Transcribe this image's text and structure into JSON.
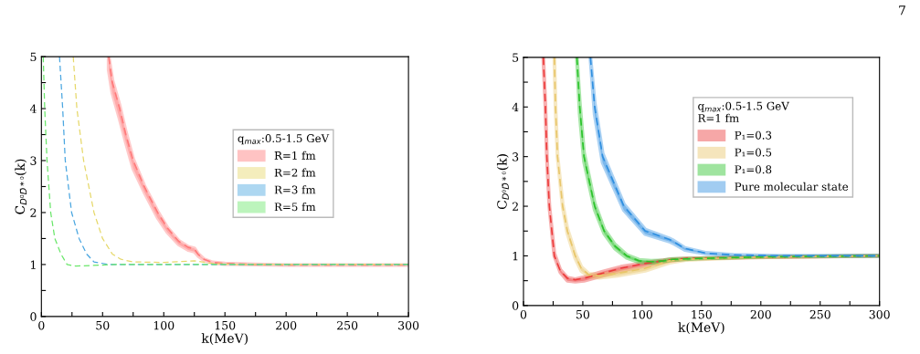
{
  "chart_data": [
    {
      "type": "line",
      "xlabel": "k(MeV)",
      "ylabel": "C$_{D⁰D̄*⁰}$(k)",
      "legend_title": "q$_{max}$:0.5-1.5 GeV",
      "legend": "right",
      "line_style": "dashed",
      "grid": false,
      "xlim": [
        0,
        300
      ],
      "ylim": [
        0,
        5
      ],
      "xticks": [
        0,
        {
          "value": 25,
          "label": null
        },
        50,
        {
          "value": 75,
          "label": null
        },
        100,
        {
          "value": 125,
          "label": null
        },
        150,
        {
          "value": 175,
          "label": null
        },
        200,
        {
          "value": 225,
          "label": null
        },
        250,
        {
          "value": 275,
          "label": null
        },
        300
      ],
      "yticks": [
        0,
        {
          "value": 0.5,
          "label": null
        },
        1,
        {
          "value": 1.5,
          "label": null
        },
        2,
        {
          "value": 2.5,
          "label": null
        },
        3,
        {
          "value": 3.5,
          "label": null
        },
        4,
        {
          "value": 4.5,
          "label": null
        },
        5
      ],
      "series": [
        {
          "name": "R=1 fm",
          "color": "#ff7a7a",
          "x": [
            55,
            58,
            64,
            69,
            75,
            84,
            95,
            103,
            112,
            120,
            125,
            128,
            133,
            140,
            150,
            175,
            200,
            300
          ],
          "values": [
            5,
            4.5,
            4,
            3.5,
            3,
            2.5,
            2,
            1.7,
            1.45,
            1.33,
            1.3,
            1.2,
            1.1,
            1.04,
            1.02,
            1.0,
            0.99,
            0.99
          ],
          "lower": [
            4.75,
            4.3,
            3.8,
            3.35,
            2.85,
            2.4,
            1.9,
            1.62,
            1.39,
            1.28,
            1.25,
            1.17,
            1.08,
            1.03,
            1.01,
            1.0,
            0.99,
            0.99
          ],
          "upper": [
            5,
            4.55,
            4.05,
            3.55,
            3.03,
            2.52,
            2.02,
            1.71,
            1.46,
            1.34,
            1.31,
            1.21,
            1.1,
            1.04,
            1.02,
            1.0,
            0.99,
            0.99
          ]
        },
        {
          "name": "R=2 fm",
          "color": "#e6d86a",
          "x": [
            26,
            29,
            34.5,
            43,
            50,
            58,
            65,
            75,
            100,
            125,
            140,
            160,
            300
          ],
          "values": [
            5,
            4,
            3,
            2,
            1.5,
            1.2,
            1.1,
            1.05,
            1.04,
            1.07,
            1.02,
            1.0,
            1.0
          ]
        },
        {
          "name": "R=3 fm",
          "color": "#4aa6e0",
          "x": [
            14.8,
            17.4,
            19.5,
            24.7,
            30.8,
            37,
            43,
            55,
            300
          ],
          "values": [
            5,
            4,
            3,
            2,
            1.5,
            1.2,
            1.05,
            1.0,
            1.0
          ]
        },
        {
          "name": "R=5 fm",
          "color": "#6ae66a",
          "x": [
            1.5,
            2.7,
            4.6,
            7.6,
            11,
            16,
            21,
            28,
            40,
            60,
            300
          ],
          "values": [
            5,
            4,
            3,
            2,
            1.5,
            1.2,
            1.0,
            0.97,
            0.98,
            1.0,
            1.0
          ]
        }
      ]
    },
    {
      "type": "line",
      "xlabel": "k(MeV)",
      "ylabel": "C$_{D⁰D̄*⁰}$(k)",
      "legend_title": "q$_{max}$:0.5-1.5 GeV\nR=1 fm",
      "legend": "top right",
      "line_style": "dashed",
      "grid": false,
      "annotations": [
        "7"
      ],
      "xlim": [
        0,
        300
      ],
      "ylim": [
        0,
        5
      ],
      "xticks": [
        0,
        {
          "value": 25,
          "label": null
        },
        50,
        {
          "value": 75,
          "label": null
        },
        100,
        {
          "value": 125,
          "label": null
        },
        150,
        {
          "value": 175,
          "label": null
        },
        200,
        {
          "value": 225,
          "label": null
        },
        250,
        {
          "value": 275,
          "label": null
        },
        300
      ],
      "yticks": [
        0,
        {
          "value": 0.5,
          "label": null
        },
        1,
        {
          "value": 1.5,
          "label": null
        },
        2,
        {
          "value": 2.5,
          "label": null
        },
        3,
        {
          "value": 3.5,
          "label": null
        },
        4,
        {
          "value": 4.5,
          "label": null
        },
        5
      ],
      "series": [
        {
          "name": "P₁=0.3",
          "color": "#ec3b3b",
          "x": [
            16.7,
            18.5,
            19.7,
            21.8,
            26,
            31,
            37,
            43.6,
            51,
            66.7,
            82,
            102.6,
            123,
            138,
            190,
            300
          ],
          "values": [
            5,
            4,
            3,
            2,
            1,
            0.7,
            0.55,
            0.52,
            0.55,
            0.65,
            0.75,
            0.85,
            0.92,
            0.95,
            0.97,
            1.0
          ],
          "lower": [
            5,
            4,
            3,
            2,
            1,
            0.67,
            0.5,
            0.48,
            0.5,
            0.6,
            0.7,
            0.8,
            0.9,
            0.94,
            0.97,
            1.0
          ],
          "upper": [
            5,
            4,
            3,
            2,
            1.05,
            0.72,
            0.56,
            0.53,
            0.57,
            0.68,
            0.78,
            0.86,
            0.93,
            0.95,
            0.97,
            1.0
          ]
        },
        {
          "name": "P₁=0.5",
          "color": "#e8c66a",
          "x": [
            26,
            27,
            28.7,
            33,
            37,
            43.6,
            48.7,
            55,
            64,
            79.5,
            102.6,
            123,
            138,
            190,
            300
          ],
          "values": [
            5,
            4,
            3,
            2,
            1.5,
            1,
            0.75,
            0.62,
            0.6,
            0.65,
            0.75,
            0.9,
            0.93,
            0.97,
            1.0
          ],
          "lower": [
            5,
            4,
            3,
            2,
            1.45,
            0.95,
            0.7,
            0.58,
            0.56,
            0.6,
            0.7,
            0.86,
            0.92,
            0.97,
            1.0
          ],
          "upper": [
            5,
            4,
            3,
            2.05,
            1.55,
            1.05,
            0.78,
            0.64,
            0.62,
            0.67,
            0.77,
            0.91,
            0.93,
            0.97,
            1.0
          ]
        },
        {
          "name": "P₁=0.8",
          "color": "#2bc42b",
          "x": [
            45,
            47.4,
            51,
            60,
            68,
            77,
            87,
            97.4,
            107.7,
            118,
            125.6,
            151,
            202.6,
            300
          ],
          "values": [
            5,
            4,
            3,
            2,
            1.5,
            1.2,
            1.0,
            0.9,
            0.88,
            0.9,
            0.93,
            0.95,
            0.98,
            1.0
          ],
          "lower": [
            5,
            3.85,
            2.9,
            1.93,
            1.45,
            1.15,
            0.96,
            0.87,
            0.86,
            0.89,
            0.92,
            0.95,
            0.98,
            1.0
          ],
          "upper": [
            5,
            4.1,
            3.08,
            2.06,
            1.54,
            1.23,
            1.02,
            0.92,
            0.9,
            0.91,
            0.94,
            0.95,
            0.98,
            1.0
          ]
        },
        {
          "name": "Pure molecular state",
          "color": "#2f8fe0",
          "x": [
            56.4,
            60,
            66.7,
            84.6,
            102.6,
            123,
            125.6,
            136,
            154,
            177,
            215,
            300
          ],
          "values": [
            5,
            4,
            3,
            2,
            1.5,
            1.33,
            1.3,
            1.15,
            1.05,
            1.02,
            1.0,
            1.0
          ],
          "lower": [
            5,
            3.85,
            2.88,
            1.92,
            1.44,
            1.29,
            1.26,
            1.12,
            1.04,
            1.01,
            1.0,
            1.0
          ],
          "upper": [
            5,
            4.08,
            3.06,
            2.04,
            1.53,
            1.35,
            1.32,
            1.16,
            1.06,
            1.02,
            1.0,
            1.0
          ]
        }
      ]
    }
  ]
}
